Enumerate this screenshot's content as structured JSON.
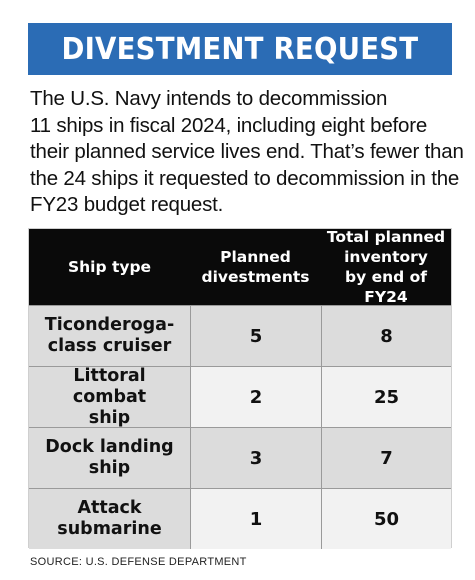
{
  "banner": {
    "title": "DIVESTMENT REQUEST",
    "color": "#2b6cb5"
  },
  "intro": {
    "lines": [
      "The U.S. Navy intends to decommission",
      "11 ships in fiscal 2024, including eight before",
      "their planned service lives end. That’s fewer than",
      "the 24 ships it requested to decommission in the",
      "FY23 budget request."
    ]
  },
  "table": {
    "headers": {
      "ship_type": "Ship type",
      "planned_divestments": [
        "Planned",
        "divestments"
      ],
      "total_inventory": [
        "Total planned",
        "inventory",
        "by end of FY24"
      ]
    },
    "rows": [
      {
        "name": [
          "Ticonderoga-",
          "class cruiser"
        ],
        "divestments": "5",
        "inventory": "8"
      },
      {
        "name": [
          "Littoral combat",
          "ship"
        ],
        "divestments": "2",
        "inventory": "25"
      },
      {
        "name": [
          "Dock landing",
          "ship"
        ],
        "divestments": "3",
        "inventory": "7"
      },
      {
        "name": [
          "Attack",
          "submarine"
        ],
        "divestments": "1",
        "inventory": "50"
      }
    ]
  },
  "source": "SOURCE: U.S. DEFENSE DEPARTMENT"
}
